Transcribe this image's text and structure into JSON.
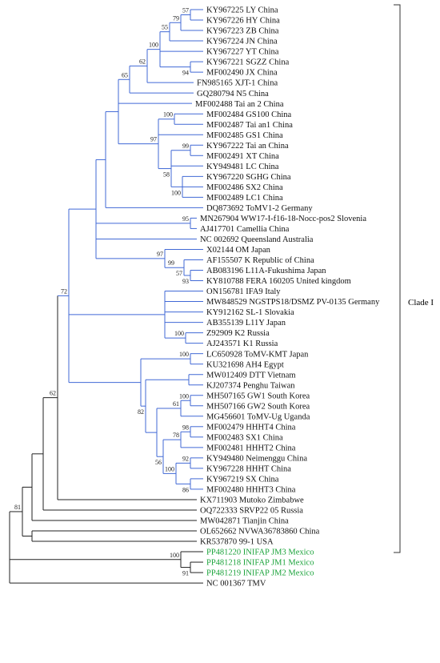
{
  "tree": {
    "leaves": [
      {
        "label": "KY967225 LY China",
        "group": "clade1"
      },
      {
        "label": "KY967226 HY China",
        "group": "clade1"
      },
      {
        "label": "KY967223 ZB China",
        "group": "clade1"
      },
      {
        "label": "KY967224 JN China",
        "group": "clade1"
      },
      {
        "label": "KY967227 YT China",
        "group": "clade1"
      },
      {
        "label": "KY967221 SGZZ China",
        "group": "clade1"
      },
      {
        "label": "MF002490 JX China",
        "group": "clade1"
      },
      {
        "label": "FN985165 XJT-1 China",
        "group": "clade1"
      },
      {
        "label": "GQ280794 N5 China",
        "group": "clade1"
      },
      {
        "label": "MF002488 Tai an 2 China",
        "group": "clade1"
      },
      {
        "label": "MF002484 GS100 China",
        "group": "clade1"
      },
      {
        "label": "MF002487 Tai an1 China",
        "group": "clade1"
      },
      {
        "label": "MF002485 GS1 China",
        "group": "clade1"
      },
      {
        "label": "KY967222 Tai an China",
        "group": "clade1"
      },
      {
        "label": "MF002491 XT China",
        "group": "clade1"
      },
      {
        "label": "KY949481 LC China",
        "group": "clade1"
      },
      {
        "label": "KY967220 SGHG China",
        "group": "clade1"
      },
      {
        "label": "MF002486 SX2 China",
        "group": "clade1"
      },
      {
        "label": "MF002489 LC1 China",
        "group": "clade1"
      },
      {
        "label": "DQ873692 ToMV1-2 Germany",
        "group": "clade1"
      },
      {
        "label": "MN267904 WW17-I-f16-18-Nocc-pos2 Slovenia",
        "group": "clade1"
      },
      {
        "label": "AJ417701 Camellia China",
        "group": "clade1"
      },
      {
        "label": "NC 002692 Queensland Australia",
        "group": "clade1"
      },
      {
        "label": "X02144 OM Japan",
        "group": "clade1"
      },
      {
        "label": "AF155507 K Republic of China",
        "group": "clade1"
      },
      {
        "label": "AB083196 L11A-Fukushima Japan",
        "group": "clade1"
      },
      {
        "label": "KY810788 FERA 160205 United kingdom",
        "group": "clade1"
      },
      {
        "label": "ON156781 IFA9 Italy",
        "group": "clade1"
      },
      {
        "label": "MW848529 NGSTPS18/DSMZ PV-0135 Germany",
        "group": "clade1"
      },
      {
        "label": "KY912162 SL-1 Slovakia",
        "group": "clade1"
      },
      {
        "label": "AB355139 L11Y Japan",
        "group": "clade1"
      },
      {
        "label": "Z92909 K2 Russia",
        "group": "clade1"
      },
      {
        "label": "AJ243571 K1 Russia",
        "group": "clade1"
      },
      {
        "label": "LC650928 ToMV-KMT Japan",
        "group": "clade1"
      },
      {
        "label": "KU321698 AH4 Egypt",
        "group": "clade1"
      },
      {
        "label": "MW012409 DTT Vietnam",
        "group": "clade1"
      },
      {
        "label": "KJ207374 Penghu Taiwan",
        "group": "clade1"
      },
      {
        "label": "MH507165 GW1 South Korea",
        "group": "clade1"
      },
      {
        "label": "MH507166 GW2 South Korea",
        "group": "clade1"
      },
      {
        "label": "MG456601 ToMV-Ug Uganda",
        "group": "clade1"
      },
      {
        "label": "MF002479 HHHT4 China",
        "group": "clade1"
      },
      {
        "label": "MF002483 SX1 China",
        "group": "clade1"
      },
      {
        "label": "MF002481 HHHT2 China",
        "group": "clade1"
      },
      {
        "label": "KY949480 Neimenggu China",
        "group": "clade1"
      },
      {
        "label": "KY967228 HHHT China",
        "group": "clade1"
      },
      {
        "label": "KY967219 SX China",
        "group": "clade1"
      },
      {
        "label": "MF002480 HHHT3 China",
        "group": "clade1"
      },
      {
        "label": "KX711903 Mutoko Zimbabwe",
        "group": "other"
      },
      {
        "label": "OQ722333 SRVP22 05 Russia",
        "group": "other"
      },
      {
        "label": "MW042871 Tianjin China",
        "group": "other"
      },
      {
        "label": "OL652662 NVWA36783860 China",
        "group": "other"
      },
      {
        "label": "KR537870 99-1 USA",
        "group": "other"
      },
      {
        "label": "PP481220 INIFAP JM3 Mexico",
        "group": "mexico"
      },
      {
        "label": "PP481218 INIFAP JM1 Mexico",
        "group": "mexico"
      },
      {
        "label": "PP481219 INIFAP JM2 Mexico",
        "group": "mexico"
      },
      {
        "label": "NC 001367 TMV",
        "group": "other"
      }
    ],
    "bootstrap": [
      {
        "value": "57",
        "node": "n_ly_hy"
      },
      {
        "value": "79",
        "node": "n_zb"
      },
      {
        "value": "55",
        "node": "n_jn"
      },
      {
        "value": "100",
        "node": "n_top7"
      },
      {
        "value": "94",
        "node": "n_sgzz_jx"
      },
      {
        "value": "62",
        "node": "n_xjt"
      },
      {
        "value": "65",
        "node": "n_n5"
      },
      {
        "value": "100",
        "node": "n_gs100"
      },
      {
        "value": "97",
        "node": "n_gs_grp"
      },
      {
        "value": "99",
        "node": "n_taian_xt"
      },
      {
        "value": "58",
        "node": "n_lc_grp"
      },
      {
        "value": "100",
        "node": "n_sghg"
      },
      {
        "value": "72",
        "node": "n_main"
      },
      {
        "value": "95",
        "node": "n_slov"
      },
      {
        "value": "97",
        "node": "n_japan"
      },
      {
        "value": "99",
        "node": "n_k_rep"
      },
      {
        "value": "57",
        "node": "n_l11a"
      },
      {
        "value": "93",
        "node": "n_fera"
      },
      {
        "value": "62",
        "node": "n_c1"
      },
      {
        "value": "100",
        "node": "n_russia"
      },
      {
        "value": "100",
        "node": "n_kmt"
      },
      {
        "value": "100",
        "node": "n_gw"
      },
      {
        "value": "61",
        "node": "n_gw_ug"
      },
      {
        "value": "82",
        "node": "n_lower"
      },
      {
        "value": "98",
        "node": "n_hhht4"
      },
      {
        "value": "78",
        "node": "n_hhht_grp"
      },
      {
        "value": "56",
        "node": "n_lower2"
      },
      {
        "value": "92",
        "node": "n_nm"
      },
      {
        "value": "100",
        "node": "n_hhht_all"
      },
      {
        "value": "86",
        "node": "n_sx_hhht3"
      },
      {
        "value": "81",
        "node": "n_out"
      },
      {
        "value": "100",
        "node": "n_mex"
      },
      {
        "value": "91",
        "node": "n_mex2"
      }
    ],
    "clade_label": "Clade I",
    "colors": {
      "clade1": "#3a5fc8",
      "mexico": "#1aa33a",
      "other": "#111111",
      "branch_blue": "#4169d6",
      "branch_black": "#222222"
    }
  }
}
